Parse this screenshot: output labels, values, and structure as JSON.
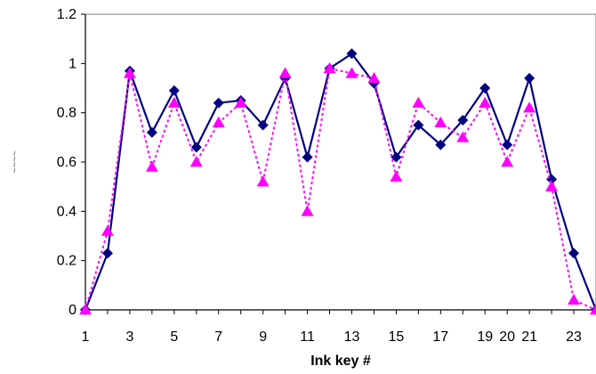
{
  "chart_data": {
    "type": "line",
    "xlabel": "Ink key #",
    "ylabel": "",
    "ylim": [
      0,
      1.2
    ],
    "xlim": [
      1,
      24
    ],
    "y_ticks": [
      "0",
      "0.2",
      "0.4",
      "0.6",
      "0.8",
      "1",
      "1.2"
    ],
    "x_tick_values": [
      1,
      3,
      5,
      7,
      9,
      11,
      13,
      15,
      17,
      19,
      20,
      21,
      23
    ],
    "x_ticks": [
      "1",
      "3",
      "5",
      "7",
      "9",
      "11",
      "13",
      "15",
      "17",
      "19",
      "20",
      "21",
      "23"
    ],
    "grid": false,
    "x": [
      1,
      2,
      3,
      4,
      5,
      6,
      7,
      8,
      9,
      10,
      11,
      12,
      13,
      14,
      15,
      16,
      17,
      18,
      19,
      20,
      21,
      22,
      23,
      24
    ],
    "series": [
      {
        "marker": "diamond",
        "line_style": "solid",
        "color": "#000080",
        "values": [
          0.0,
          0.23,
          0.97,
          0.72,
          0.89,
          0.66,
          0.84,
          0.85,
          0.75,
          0.94,
          0.62,
          0.98,
          1.04,
          0.92,
          0.62,
          0.75,
          0.67,
          0.77,
          0.9,
          0.67,
          0.94,
          0.53,
          0.23,
          0.0
        ]
      },
      {
        "marker": "triangle",
        "line_style": "dashed",
        "color": "#ff00ff",
        "values": [
          0.0,
          0.32,
          0.96,
          0.58,
          0.84,
          0.6,
          0.76,
          0.84,
          0.52,
          0.96,
          0.4,
          0.98,
          0.96,
          0.94,
          0.54,
          0.84,
          0.76,
          0.7,
          0.84,
          0.6,
          0.82,
          0.5,
          0.04,
          0.0
        ]
      }
    ]
  }
}
